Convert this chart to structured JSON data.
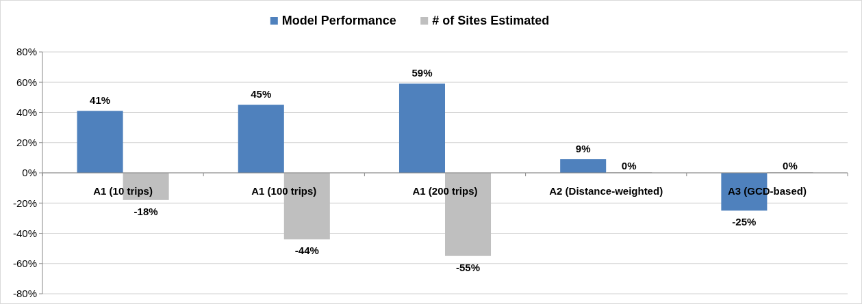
{
  "chart_data": {
    "type": "bar",
    "categories": [
      "A1 (10 trips)",
      "A1 (100 trips)",
      "A1 (200 trips)",
      "A2 (Distance-weighted)",
      "A3 (GCD-based)"
    ],
    "series": [
      {
        "name": "Model Performance",
        "color": "#4f81bd",
        "values": [
          41,
          45,
          59,
          9,
          -25
        ],
        "value_labels": [
          "41%",
          "45%",
          "59%",
          "9%",
          "-25%"
        ]
      },
      {
        "name": "# of Sites Estimated",
        "color": "#bfbfbf",
        "values": [
          -18,
          -44,
          -55,
          0,
          0
        ],
        "value_labels": [
          "-18%",
          "-44%",
          "-55%",
          "0%",
          "0%"
        ]
      }
    ],
    "ylim": [
      -80,
      80
    ],
    "yticks": [
      {
        "value": -80,
        "label": "-80%"
      },
      {
        "value": -60,
        "label": "-60%"
      },
      {
        "value": -40,
        "label": "-40%"
      },
      {
        "value": -20,
        "label": "-20%"
      },
      {
        "value": 0,
        "label": "0%"
      },
      {
        "value": 20,
        "label": "20%"
      },
      {
        "value": 40,
        "label": "40%"
      },
      {
        "value": 60,
        "label": "60%"
      },
      {
        "value": 80,
        "label": "80%"
      }
    ],
    "grid": "y",
    "legend": "top"
  }
}
